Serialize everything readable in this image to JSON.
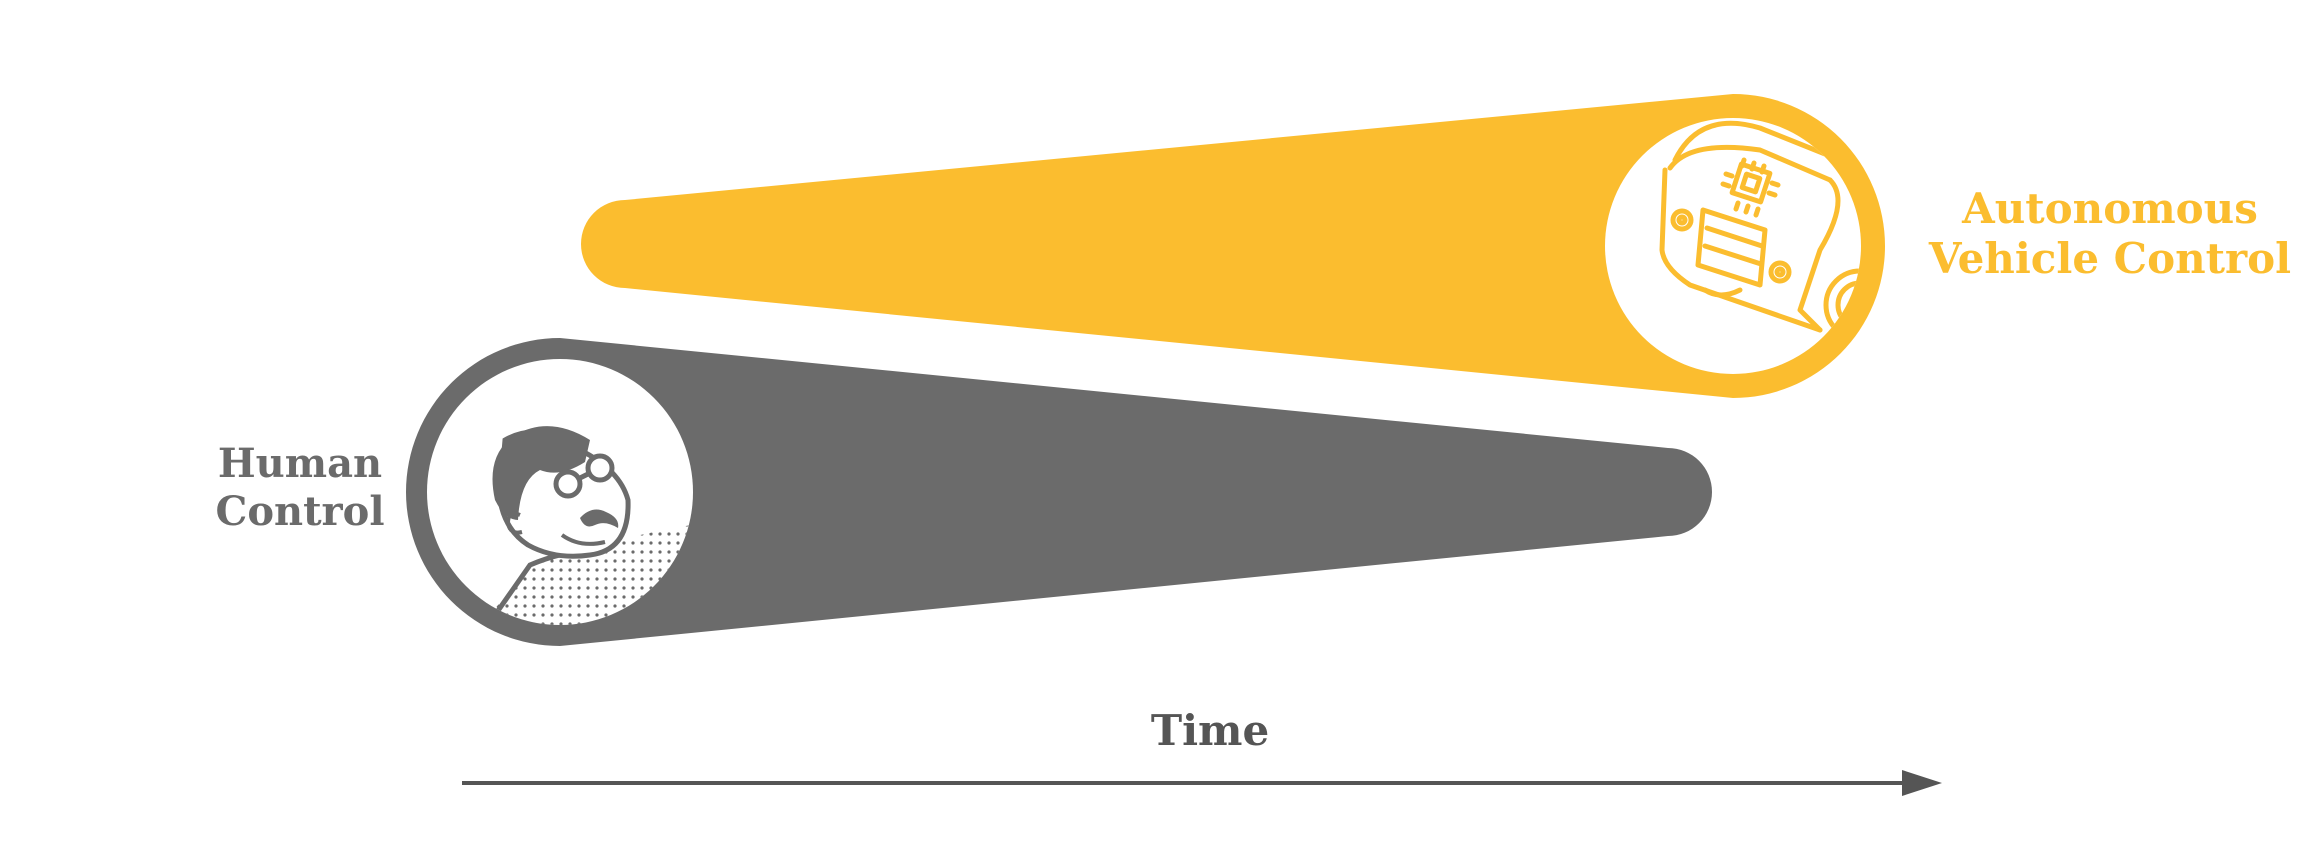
{
  "colors": {
    "human": "#6b6b6b",
    "autonomous": "#fbbd2f",
    "axis": "#555555",
    "background": "#ffffff"
  },
  "labels": {
    "human": [
      "Human",
      "Control"
    ],
    "autonomous": [
      "Autonomous",
      "Vehicle Control"
    ],
    "time": "Time"
  },
  "icons": {
    "human": "person-with-glasses-icon",
    "autonomous": "autonomous-car-icon",
    "time": "arrow-right-icon"
  }
}
